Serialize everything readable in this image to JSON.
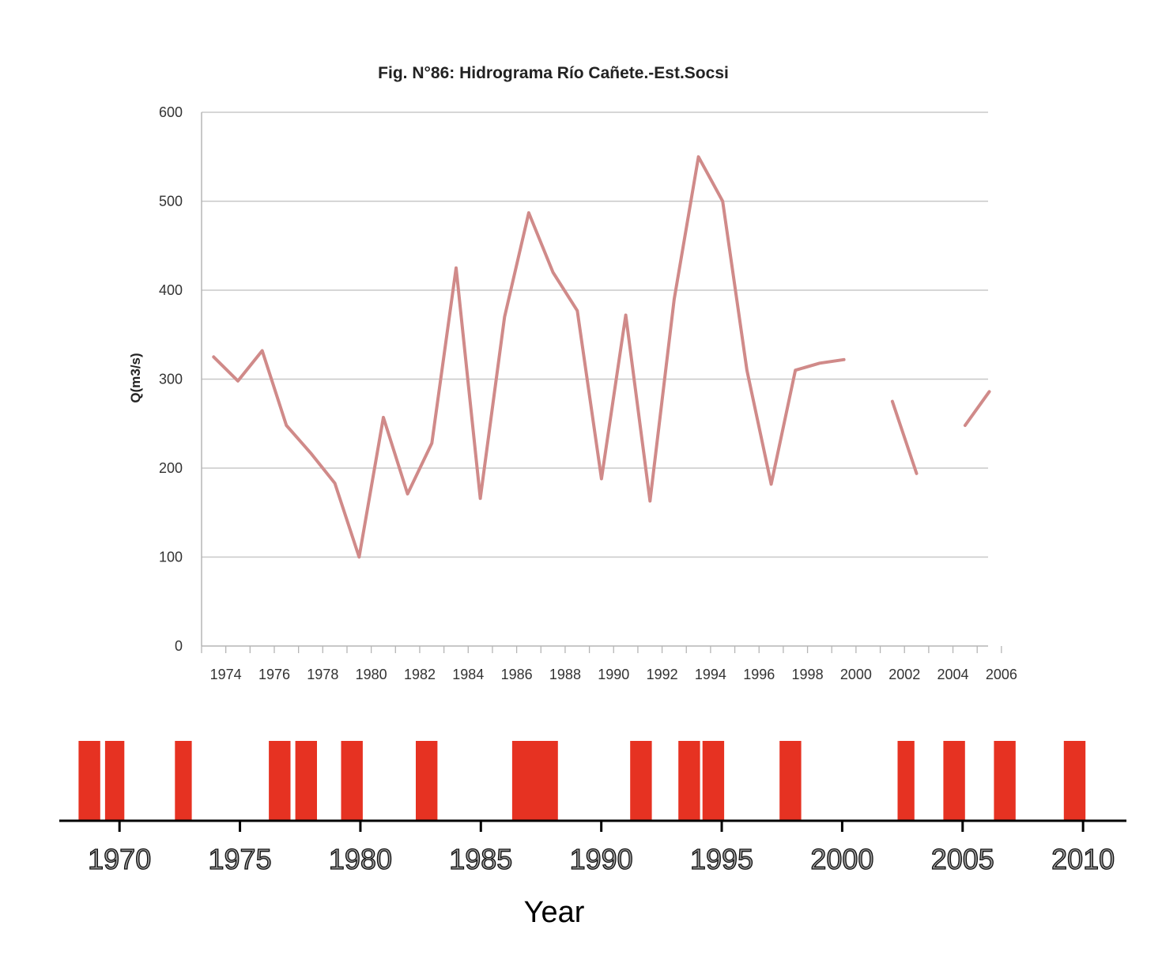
{
  "chart_data": [
    {
      "type": "line",
      "title": "Fig. N°86:  Hidrograma Río Cañete.-Est.Socsi",
      "ylabel": "Q(m3/s)",
      "xlabel": "",
      "ylim": [
        0,
        600
      ],
      "yticks": [
        0,
        100,
        200,
        300,
        400,
        500,
        600
      ],
      "xticks": [
        1974,
        1976,
        1978,
        1980,
        1982,
        1984,
        1986,
        1988,
        1990,
        1992,
        1994,
        1996,
        1998,
        2000,
        2002,
        2004,
        2006
      ],
      "grid": true,
      "line_color": "#d08a89",
      "series": [
        {
          "x": [
            1974,
            1975,
            1976,
            1977,
            1978,
            1979,
            1980,
            1981,
            1982,
            1983,
            1984,
            1985,
            1986,
            1987,
            1988,
            1989,
            1990,
            1991,
            1992,
            1993,
            1994,
            1995,
            1996,
            1997,
            1998,
            1999,
            2000,
            2001,
            2002,
            2003,
            2004,
            2005,
            2006
          ],
          "y": [
            325,
            298,
            332,
            248,
            217,
            183,
            100,
            257,
            171,
            228,
            425,
            166,
            370,
            487,
            420,
            377,
            188,
            372,
            163,
            390,
            550,
            500,
            310,
            182,
            310,
            318,
            322,
            null,
            275,
            194,
            null,
            248,
            286
          ]
        }
      ]
    },
    {
      "type": "bar",
      "xlabel": "Year",
      "xlim": [
        1967.5,
        2011.8
      ],
      "xticks": [
        1970,
        1975,
        1980,
        1985,
        1990,
        1995,
        2000,
        2005,
        2010
      ],
      "bar_color": "#e63222",
      "events": [
        [
          1968.3,
          1969.2
        ],
        [
          1969.4,
          1970.2
        ],
        [
          1972.3,
          1973.0
        ],
        [
          1976.2,
          1977.1
        ],
        [
          1977.3,
          1978.2
        ],
        [
          1979.2,
          1980.1
        ],
        [
          1982.3,
          1983.2
        ],
        [
          1986.3,
          1988.2
        ],
        [
          1991.2,
          1992.1
        ],
        [
          1993.2,
          1994.1
        ],
        [
          1994.2,
          1995.1
        ],
        [
          1997.4,
          1998.3
        ],
        [
          2002.3,
          2003.0
        ],
        [
          2004.2,
          2005.1
        ],
        [
          2006.3,
          2007.2
        ],
        [
          2009.2,
          2010.1
        ]
      ]
    }
  ]
}
